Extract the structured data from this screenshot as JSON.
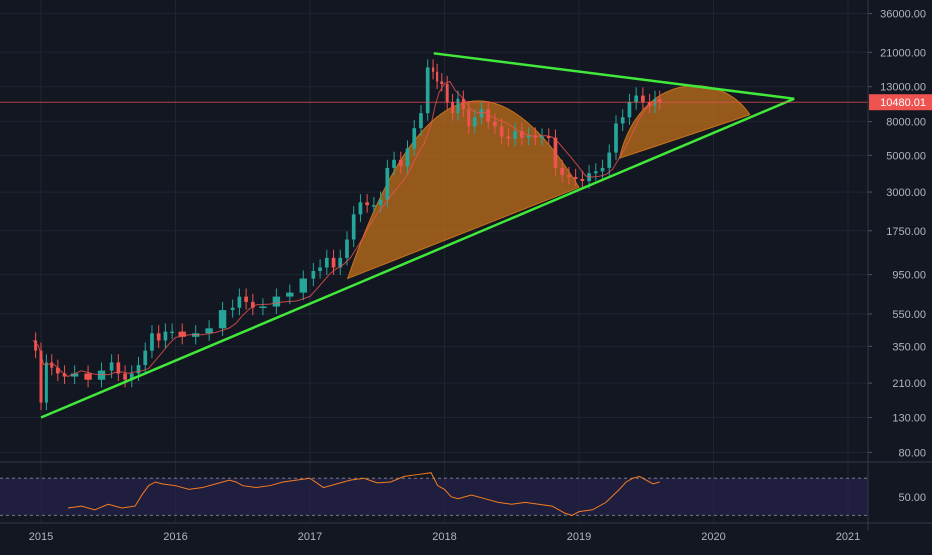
{
  "theme": {
    "background": "#131722",
    "grid": "#1f2433",
    "axis_text": "#b2b5be",
    "up": "#26a69a",
    "down": "#ef5350",
    "trendline": "#41e93a",
    "dome_fill": "#c8731a",
    "price_line": "#ef5350",
    "price_badge": "#ef5350",
    "rsi_line": "#f57c1f",
    "rsi_band": "#2a2456"
  },
  "chart_data": [
    {
      "type": "line",
      "name": "price",
      "scale": "log",
      "ylim": [
        70,
        40000
      ],
      "xlim": [
        2015.0,
        2021.25
      ],
      "x_ticks": [
        "2015",
        "2016",
        "2017",
        "2018",
        "2019",
        "2020",
        "2021"
      ],
      "y_ticks": [
        "36000.00",
        "21000.00",
        "13000.00",
        "8000.00",
        "5000.00",
        "3000.00",
        "1750.00",
        "950.00",
        "550.00",
        "350.00",
        "210.00",
        "130.00",
        "80.00"
      ],
      "last_price_label": "10480.01",
      "last_price": 10480,
      "series": [
        {
          "x": [
            2014.94,
            2014.98,
            2015.02,
            2015.06,
            2015.1,
            2015.15,
            2015.2,
            2015.3,
            2015.4,
            2015.5,
            2015.55,
            2015.6,
            2015.65,
            2015.7,
            2015.75,
            2015.8,
            2015.85,
            2015.9,
            2015.95,
            2016.0,
            2016.1,
            2016.2,
            2016.3,
            2016.4,
            2016.45,
            2016.5,
            2016.55,
            2016.6,
            2016.7,
            2016.8,
            2016.9,
            2017.0,
            2017.05,
            2017.1,
            2017.15,
            2017.2,
            2017.25,
            2017.3,
            2017.35,
            2017.4,
            2017.45,
            2017.5,
            2017.55,
            2017.6,
            2017.65,
            2017.7,
            2017.75,
            2017.8,
            2017.85,
            2017.9,
            2017.93,
            2017.96,
            2018.0,
            2018.04,
            2018.08,
            2018.12,
            2018.16,
            2018.2,
            2018.25,
            2018.3,
            2018.35,
            2018.4,
            2018.45,
            2018.5,
            2018.55,
            2018.6,
            2018.65,
            2018.7,
            2018.75,
            2018.8,
            2018.85,
            2018.9,
            2018.95,
            2019.0,
            2019.05,
            2019.1,
            2019.15,
            2019.2,
            2019.25,
            2019.3,
            2019.35,
            2019.4,
            2019.45,
            2019.5,
            2019.55,
            2019.58,
            2019.62
          ],
          "y": [
            380,
            330,
            160,
            280,
            260,
            240,
            230,
            240,
            220,
            250,
            280,
            240,
            220,
            240,
            270,
            330,
            420,
            380,
            430,
            430,
            400,
            420,
            450,
            580,
            600,
            700,
            650,
            600,
            610,
            700,
            740,
            900,
            1000,
            1050,
            1200,
            1050,
            1200,
            1550,
            2200,
            2600,
            2500,
            2500,
            2700,
            4200,
            4700,
            4300,
            5500,
            7300,
            9000,
            17000,
            16000,
            14000,
            13500,
            10500,
            9000,
            11000,
            9500,
            7500,
            8500,
            9500,
            8000,
            7500,
            6500,
            6300,
            7000,
            6400,
            6600,
            6400,
            6500,
            6400,
            4200,
            3800,
            3700,
            3600,
            3500,
            3900,
            4000,
            4200,
            5200,
            7800,
            8500,
            10500,
            11500,
            10500,
            10000,
            11000,
            10480
          ]
        }
      ]
    },
    {
      "type": "line",
      "name": "rsi",
      "ylim": [
        25,
        80
      ],
      "y_ticks": [
        "50.00"
      ],
      "band": [
        30,
        70
      ],
      "series": [
        {
          "x": [
            2015.2,
            2015.3,
            2015.4,
            2015.5,
            2015.6,
            2015.7,
            2015.75,
            2015.8,
            2015.85,
            2015.9,
            2016.0,
            2016.1,
            2016.2,
            2016.3,
            2016.4,
            2016.45,
            2016.5,
            2016.6,
            2016.7,
            2016.8,
            2016.9,
            2017.0,
            2017.05,
            2017.1,
            2017.2,
            2017.3,
            2017.4,
            2017.5,
            2017.6,
            2017.7,
            2017.8,
            2017.9,
            2017.95,
            2018.0,
            2018.05,
            2018.1,
            2018.2,
            2018.3,
            2018.4,
            2018.5,
            2018.6,
            2018.7,
            2018.8,
            2018.9,
            2018.95,
            2019.0,
            2019.1,
            2019.2,
            2019.3,
            2019.35,
            2019.4,
            2019.45,
            2019.5,
            2019.55,
            2019.6
          ],
          "y": [
            38,
            40,
            36,
            42,
            38,
            40,
            52,
            62,
            66,
            64,
            62,
            58,
            60,
            64,
            68,
            66,
            62,
            60,
            62,
            66,
            68,
            70,
            65,
            60,
            64,
            68,
            70,
            65,
            66,
            72,
            74,
            76,
            62,
            58,
            50,
            48,
            52,
            48,
            44,
            42,
            44,
            42,
            40,
            32,
            30,
            34,
            36,
            44,
            58,
            66,
            70,
            72,
            68,
            64,
            66
          ]
        }
      ]
    }
  ]
}
